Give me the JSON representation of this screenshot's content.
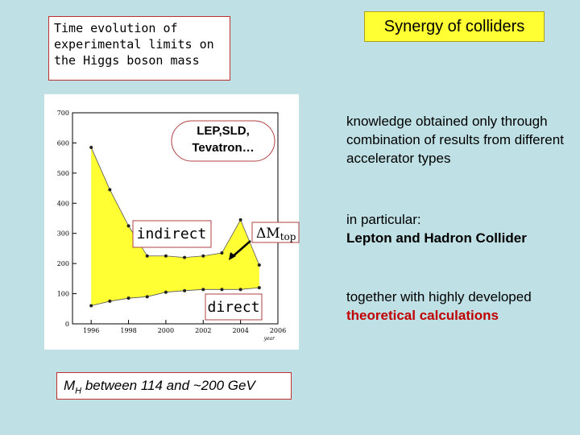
{
  "title": "Synergy of colliders",
  "caption": "Time evolution of experimental limits on the Higgs boson mass",
  "plot": {
    "x_label": "year",
    "x": [
      1996,
      1997,
      1998,
      1999,
      2000,
      2001,
      2002,
      2003,
      2004,
      2005
    ],
    "upper": [
      585,
      445,
      325,
      225,
      225,
      220,
      225,
      235,
      345,
      195
    ],
    "lower": [
      60,
      75,
      85,
      90,
      105,
      110,
      114,
      114,
      114,
      120
    ],
    "xlim": [
      1995,
      2006
    ],
    "ylim": [
      0,
      700
    ],
    "xticks": [
      1996,
      1998,
      2000,
      2002,
      2004,
      2006
    ],
    "yticks": [
      0,
      100,
      200,
      300,
      400,
      500,
      600,
      700
    ],
    "color": "#ffff33",
    "labels": {
      "experiments": "LEP,SLD, Tevatron…",
      "indirect": "indirect",
      "delta_m": "ΔM",
      "delta_m_sub": "top",
      "direct": "direct"
    }
  },
  "mass_note": {
    "symbol": "M",
    "sub": "H",
    "text": " between 114 and ~200 GeV"
  },
  "points": [
    {
      "text": "knowledge obtained only through combination of results from different accelerator types"
    },
    {
      "lead": "in particular:",
      "bold": "Lepton and Hadron Collider"
    },
    {
      "lead": "together with highly developed ",
      "bold": "theoretical calculations"
    }
  ]
}
